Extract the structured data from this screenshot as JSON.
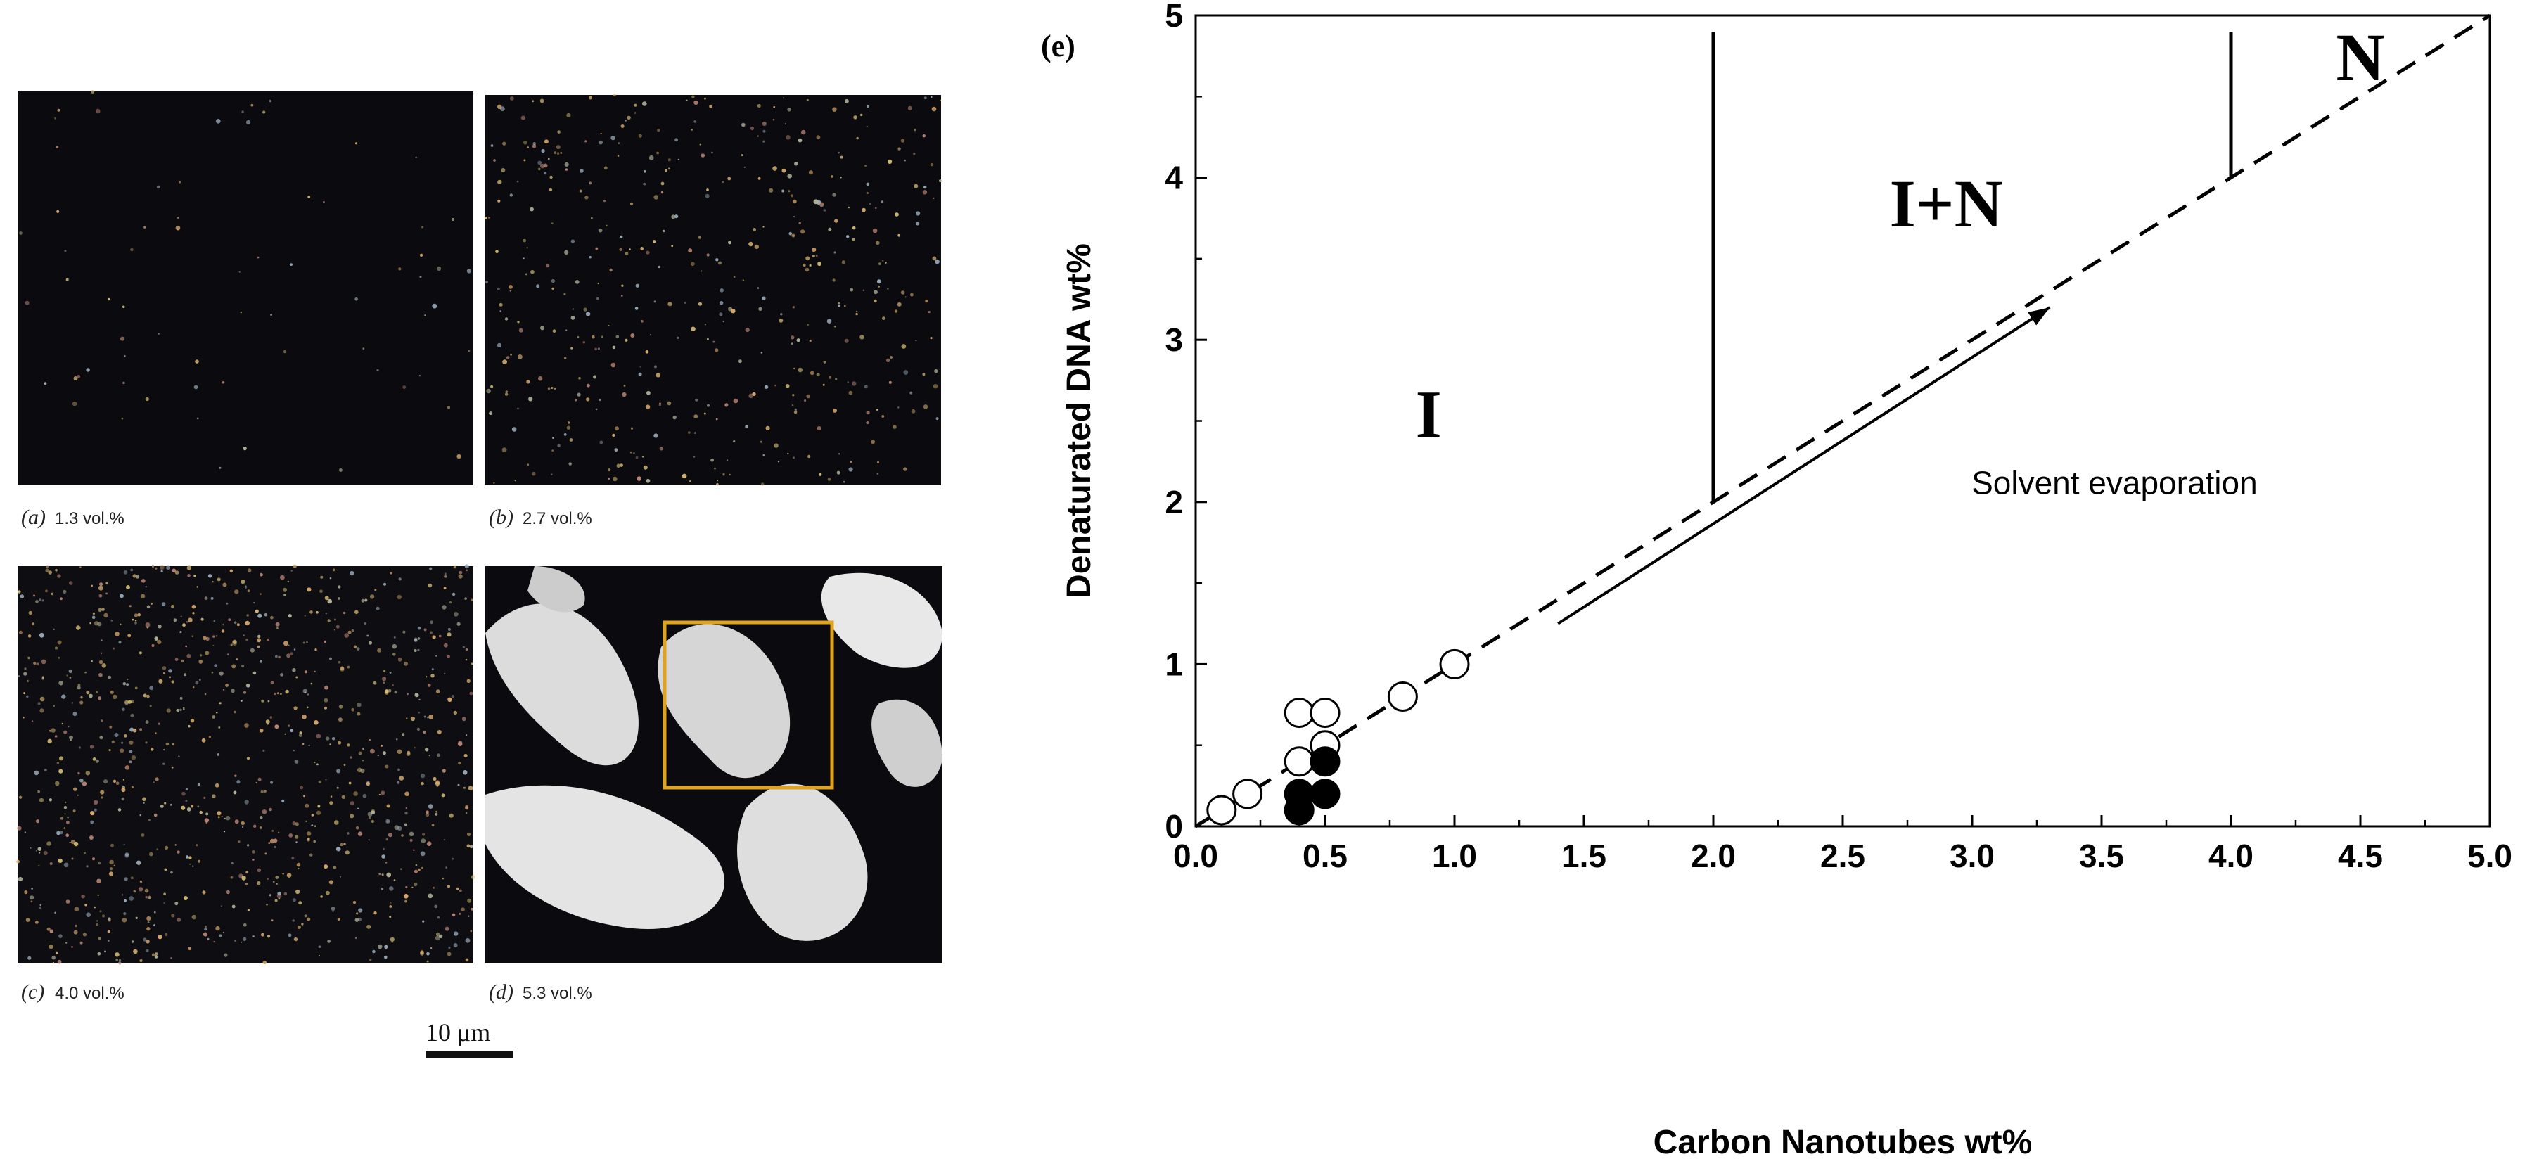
{
  "micrographs": {
    "panels": [
      {
        "letter": "(a)",
        "label": "1.3 vol.%",
        "density": 0.05
      },
      {
        "letter": "(b)",
        "label": "2.7 vol.%",
        "density": 0.35
      },
      {
        "letter": "(c)",
        "label": "4.0 vol.%",
        "density": 0.7
      },
      {
        "letter": "(d)",
        "label": "5.3 vol.%",
        "density": 1.0
      }
    ],
    "scale_bar_label": "10 μm",
    "colors": {
      "background": "#0b0b0f",
      "speck": "#d9c27a",
      "highlight_box": "#e0a31e",
      "bright": "#e6e6e6"
    }
  },
  "chart_data": {
    "type": "scatter",
    "panel_label": "(e)",
    "xlabel": "Carbon Nanotubes wt%",
    "ylabel": "Denaturated DNA wt%",
    "xlim": [
      0,
      5
    ],
    "ylim": [
      0,
      5
    ],
    "xticks": [
      "0.0",
      "0.5",
      "1.0",
      "1.5",
      "2.0",
      "2.5",
      "3.0",
      "3.5",
      "4.0",
      "4.5",
      "5.0"
    ],
    "xtick_values": [
      0,
      0.5,
      1,
      1.5,
      2,
      2.5,
      3,
      3.5,
      4,
      4.5,
      5
    ],
    "yticks": [
      "0",
      "1",
      "2",
      "3",
      "4",
      "5"
    ],
    "ytick_values": [
      0,
      1,
      2,
      3,
      4,
      5
    ],
    "series": [
      {
        "name": "open circles",
        "marker": "open",
        "points": [
          [
            0.1,
            0.1
          ],
          [
            0.2,
            0.2
          ],
          [
            0.4,
            0.4
          ],
          [
            0.4,
            0.7
          ],
          [
            0.5,
            0.7
          ],
          [
            0.5,
            0.5
          ],
          [
            0.8,
            0.8
          ],
          [
            1.0,
            1.0
          ]
        ]
      },
      {
        "name": "filled circles",
        "marker": "filled",
        "points": [
          [
            0.4,
            0.1
          ],
          [
            0.4,
            0.2
          ],
          [
            0.5,
            0.2
          ],
          [
            0.5,
            0.4
          ]
        ]
      }
    ],
    "diagonal": {
      "from": [
        0,
        0
      ],
      "to": [
        5,
        5
      ],
      "style": "dashed"
    },
    "phase_boundaries": [
      {
        "from": [
          2.0,
          2.0
        ],
        "to": [
          2.0,
          4.9
        ]
      },
      {
        "from": [
          4.0,
          4.0
        ],
        "to": [
          4.0,
          4.9
        ]
      }
    ],
    "region_labels": [
      {
        "text": "I",
        "x": 0.9,
        "y": 2.4
      },
      {
        "text": "I+N",
        "x": 2.9,
        "y": 3.7
      },
      {
        "text": "N",
        "x": 4.5,
        "y": 4.6
      }
    ],
    "arrow": {
      "from": [
        1.4,
        1.25
      ],
      "to": [
        3.3,
        3.2
      ]
    },
    "annotation": {
      "text": "Solvent evaporation",
      "x": 3.55,
      "y": 2.05
    }
  }
}
